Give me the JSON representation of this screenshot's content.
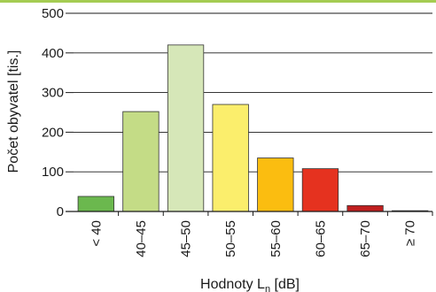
{
  "colors": {
    "top_rule": "#a5cc52",
    "grid": "#1a1a1a",
    "axis": "#1a1a1a",
    "bar_stroke": "#333333"
  },
  "chart_data": {
    "type": "bar",
    "title": "",
    "xlabel": "Hodnoty L",
    "xlabel_subscript": "n",
    "xlabel_suffix": " [dB]",
    "ylabel": "Počet obyvatel [tis.]",
    "ylim": [
      0,
      500
    ],
    "yticks": [
      0,
      100,
      200,
      300,
      400,
      500
    ],
    "grid": true,
    "legend": "none",
    "categories": [
      "< 40",
      "40–45",
      "45–50",
      "50–55",
      "55–60",
      "60–65",
      "65–70",
      "≥ 70"
    ],
    "values": [
      38,
      252,
      420,
      270,
      135,
      108,
      15,
      2
    ],
    "bar_colors": [
      "#6bb84e",
      "#c4dc86",
      "#d6e7b8",
      "#fbee6c",
      "#fbbd10",
      "#e5321f",
      "#c01f1f",
      "#666666"
    ]
  }
}
